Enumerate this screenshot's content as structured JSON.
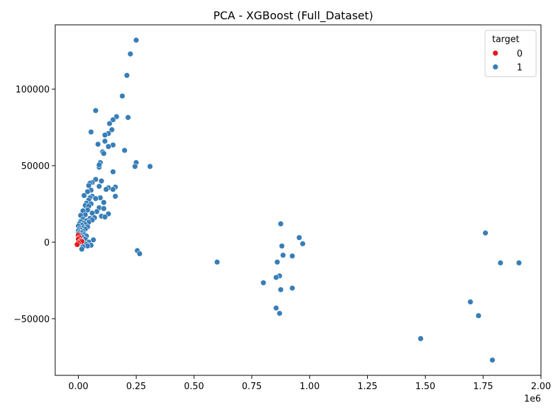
{
  "chart_data": {
    "type": "scatter",
    "title": "PCA - XGBoost (Full_Dataset)",
    "xlabel": "",
    "ylabel": "",
    "x_offset_label": "1e6",
    "xlim": [
      -0.1,
      2.0
    ],
    "ylim": [
      -87000,
      142000
    ],
    "x_ticks": [
      0.0,
      0.25,
      0.5,
      0.75,
      1.0,
      1.25,
      1.5,
      1.75,
      2.0
    ],
    "x_tick_labels": [
      "0.00",
      "0.25",
      "0.50",
      "0.75",
      "1.00",
      "1.25",
      "1.50",
      "1.75",
      "2.00"
    ],
    "y_ticks": [
      -50000,
      0,
      50000,
      100000
    ],
    "y_tick_labels": [
      "−50000",
      "0",
      "50000",
      "100000"
    ],
    "grid": false,
    "legend": {
      "title": "target",
      "position": "top-right",
      "entries": [
        {
          "label": "0",
          "color": "#e41a1c"
        },
        {
          "label": "1",
          "color": "#377eb8"
        }
      ]
    },
    "series": [
      {
        "name": "1",
        "color": "#377eb8",
        "points": [
          [
            0.25,
            132000
          ],
          [
            0.225,
            123000
          ],
          [
            0.21,
            109000
          ],
          [
            0.19,
            95500
          ],
          [
            0.075,
            86000
          ],
          [
            0.165,
            82000
          ],
          [
            0.215,
            81500
          ],
          [
            0.15,
            80000
          ],
          [
            0.135,
            77500
          ],
          [
            0.145,
            73500
          ],
          [
            0.055,
            72000
          ],
          [
            0.13,
            71000
          ],
          [
            0.115,
            70000
          ],
          [
            0.115,
            66000
          ],
          [
            0.085,
            64000
          ],
          [
            0.15,
            63500
          ],
          [
            0.13,
            62500
          ],
          [
            0.2,
            60000
          ],
          [
            0.105,
            59000
          ],
          [
            0.11,
            58000
          ],
          [
            0.25,
            52000
          ],
          [
            0.095,
            52000
          ],
          [
            0.31,
            49500
          ],
          [
            0.245,
            49500
          ],
          [
            0.09,
            49000
          ],
          [
            0.09,
            50500
          ],
          [
            0.15,
            46000
          ],
          [
            0.075,
            41000
          ],
          [
            0.1,
            40000
          ],
          [
            0.06,
            39000
          ],
          [
            0.05,
            38500
          ],
          [
            0.045,
            37000
          ],
          [
            0.09,
            36500
          ],
          [
            0.16,
            36000
          ],
          [
            0.13,
            35500
          ],
          [
            0.12,
            34500
          ],
          [
            0.15,
            34500
          ],
          [
            0.055,
            34000
          ],
          [
            0.04,
            33000
          ],
          [
            0.025,
            30500
          ],
          [
            0.06,
            30000
          ],
          [
            0.16,
            30000
          ],
          [
            0.095,
            29000
          ],
          [
            0.05,
            29000
          ],
          [
            0.075,
            28500
          ],
          [
            0.045,
            27500
          ],
          [
            0.11,
            26000
          ],
          [
            0.035,
            25500
          ],
          [
            0.055,
            25000
          ],
          [
            0.03,
            24000
          ],
          [
            0.045,
            23500
          ],
          [
            0.09,
            22500
          ],
          [
            0.11,
            22000
          ],
          [
            0.04,
            21000
          ],
          [
            0.02,
            20500
          ],
          [
            0.08,
            20000
          ],
          [
            0.06,
            19000
          ],
          [
            0.13,
            18500
          ],
          [
            0.03,
            18000
          ],
          [
            0.01,
            17500
          ],
          [
            0.1,
            17000
          ],
          [
            0.115,
            16500
          ],
          [
            0.07,
            16000
          ],
          [
            0.05,
            15500
          ],
          [
            0.02,
            15000
          ],
          [
            0.06,
            14500
          ],
          [
            0.035,
            14000
          ],
          [
            0.01,
            13500
          ],
          [
            0.045,
            13000
          ],
          [
            0.025,
            12500
          ],
          [
            0.005,
            12000
          ],
          [
            0.03,
            11500
          ],
          [
            0.015,
            11000
          ],
          [
            0.0,
            10500
          ],
          [
            0.04,
            10000
          ],
          [
            0.02,
            9500
          ],
          [
            0.005,
            9000
          ],
          [
            0.03,
            8500
          ],
          [
            0.01,
            8000
          ],
          [
            0.0,
            7500
          ],
          [
            0.02,
            7000
          ],
          [
            0.005,
            6500
          ],
          [
            0.015,
            6000
          ],
          [
            0.0,
            5500
          ],
          [
            0.025,
            5000
          ],
          [
            0.01,
            4500
          ],
          [
            0.035,
            4000
          ],
          [
            0.0,
            3500
          ],
          [
            0.02,
            3000
          ],
          [
            0.005,
            2500
          ],
          [
            0.03,
            2000
          ],
          [
            0.065,
            1500
          ],
          [
            0.015,
            1000
          ],
          [
            0.0,
            500
          ],
          [
            0.045,
            0
          ],
          [
            0.025,
            -500
          ],
          [
            0.01,
            -1000
          ],
          [
            0.035,
            -1500
          ],
          [
            0.055,
            -2000
          ],
          [
            0.04,
            -2500
          ],
          [
            0.02,
            -3000
          ],
          [
            0.015,
            -4500
          ],
          [
            0.255,
            -5500
          ],
          [
            0.265,
            -7500
          ],
          [
            0.875,
            12000
          ],
          [
            0.955,
            3000
          ],
          [
            0.97,
            -1000
          ],
          [
            0.88,
            -2500
          ],
          [
            0.885,
            -8500
          ],
          [
            0.925,
            -9000
          ],
          [
            0.86,
            -13000
          ],
          [
            0.6,
            -13000
          ],
          [
            0.8,
            -26500
          ],
          [
            0.87,
            -22000
          ],
          [
            0.855,
            -23000
          ],
          [
            0.925,
            -30000
          ],
          [
            0.875,
            -31000
          ],
          [
            0.855,
            -43000
          ],
          [
            0.87,
            -46500
          ],
          [
            1.76,
            6000
          ],
          [
            1.825,
            -13500
          ],
          [
            1.905,
            -13500
          ],
          [
            1.695,
            -39000
          ],
          [
            1.73,
            -48000
          ],
          [
            1.48,
            -63000
          ],
          [
            1.79,
            -77000
          ]
        ]
      },
      {
        "name": "0",
        "color": "#e41a1c",
        "points": [
          [
            0.0,
            4500
          ],
          [
            0.005,
            3000
          ],
          [
            0.0,
            2000
          ],
          [
            0.01,
            1000
          ],
          [
            0.005,
            0
          ],
          [
            0.015,
            500
          ],
          [
            0.0,
            -500
          ],
          [
            -0.005,
            -1500
          ]
        ]
      }
    ]
  }
}
